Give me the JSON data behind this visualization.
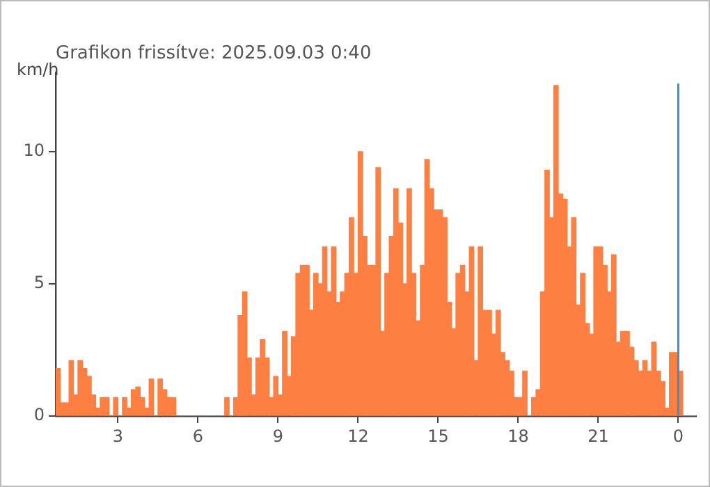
{
  "chart_data": {
    "type": "bar",
    "title": "Grafikon frissítve: 2025.09.03 0:40",
    "ylabel": "km/h",
    "x": [
      "2025-09-02T00:45",
      "2025-09-02T00:55",
      "2025-09-02T01:05",
      "2025-09-02T01:15",
      "2025-09-02T01:25",
      "2025-09-02T01:35",
      "2025-09-02T01:45",
      "2025-09-02T01:55",
      "2025-09-02T02:05",
      "2025-09-02T02:15",
      "2025-09-02T02:25",
      "2025-09-02T02:35",
      "2025-09-02T02:45",
      "2025-09-02T02:55",
      "2025-09-02T03:05",
      "2025-09-02T03:15",
      "2025-09-02T03:25",
      "2025-09-02T03:35",
      "2025-09-02T03:45",
      "2025-09-02T03:55",
      "2025-09-02T04:05",
      "2025-09-02T04:15",
      "2025-09-02T04:25",
      "2025-09-02T04:35",
      "2025-09-02T04:45",
      "2025-09-02T04:55",
      "2025-09-02T05:05",
      "2025-09-02T05:15",
      "2025-09-02T05:25",
      "2025-09-02T05:35",
      "2025-09-02T05:45",
      "2025-09-02T05:55",
      "2025-09-02T06:05",
      "2025-09-02T06:15",
      "2025-09-02T06:25",
      "2025-09-02T06:35",
      "2025-09-02T06:45",
      "2025-09-02T06:55",
      "2025-09-02T07:05",
      "2025-09-02T07:15",
      "2025-09-02T07:25",
      "2025-09-02T07:35",
      "2025-09-02T07:45",
      "2025-09-02T07:55",
      "2025-09-02T08:05",
      "2025-09-02T08:15",
      "2025-09-02T08:25",
      "2025-09-02T08:35",
      "2025-09-02T08:45",
      "2025-09-02T08:55",
      "2025-09-02T09:05",
      "2025-09-02T09:15",
      "2025-09-02T09:25",
      "2025-09-02T09:35",
      "2025-09-02T09:45",
      "2025-09-02T09:55",
      "2025-09-02T10:05",
      "2025-09-02T10:15",
      "2025-09-02T10:25",
      "2025-09-02T10:35",
      "2025-09-02T10:45",
      "2025-09-02T10:55",
      "2025-09-02T11:05",
      "2025-09-02T11:15",
      "2025-09-02T11:25",
      "2025-09-02T11:35",
      "2025-09-02T11:45",
      "2025-09-02T11:55",
      "2025-09-02T12:05",
      "2025-09-02T12:15",
      "2025-09-02T12:25",
      "2025-09-02T12:35",
      "2025-09-02T12:45",
      "2025-09-02T12:55",
      "2025-09-02T13:05",
      "2025-09-02T13:15",
      "2025-09-02T13:25",
      "2025-09-02T13:35",
      "2025-09-02T13:45",
      "2025-09-02T13:55",
      "2025-09-02T14:05",
      "2025-09-02T14:15",
      "2025-09-02T14:25",
      "2025-09-02T14:35",
      "2025-09-02T14:45",
      "2025-09-02T14:55",
      "2025-09-02T15:05",
      "2025-09-02T15:15",
      "2025-09-02T15:25",
      "2025-09-02T15:35",
      "2025-09-02T15:45",
      "2025-09-02T15:55",
      "2025-09-02T16:05",
      "2025-09-02T16:15",
      "2025-09-02T16:25",
      "2025-09-02T16:35",
      "2025-09-02T16:45",
      "2025-09-02T16:55",
      "2025-09-02T17:05",
      "2025-09-02T17:15",
      "2025-09-02T17:25",
      "2025-09-02T17:35",
      "2025-09-02T17:45",
      "2025-09-02T17:55",
      "2025-09-02T18:05",
      "2025-09-02T18:15",
      "2025-09-02T18:25",
      "2025-09-02T18:35",
      "2025-09-02T18:45",
      "2025-09-02T18:55",
      "2025-09-02T19:05",
      "2025-09-02T19:15",
      "2025-09-02T19:25",
      "2025-09-02T19:35",
      "2025-09-02T19:45",
      "2025-09-02T19:55",
      "2025-09-02T20:05",
      "2025-09-02T20:15",
      "2025-09-02T20:25",
      "2025-09-02T20:35",
      "2025-09-02T20:45",
      "2025-09-02T20:55",
      "2025-09-02T21:05",
      "2025-09-02T21:15",
      "2025-09-02T21:25",
      "2025-09-02T21:35",
      "2025-09-02T21:45",
      "2025-09-02T21:55",
      "2025-09-02T22:05",
      "2025-09-02T22:15",
      "2025-09-02T22:25",
      "2025-09-02T22:35",
      "2025-09-02T22:45",
      "2025-09-02T22:55",
      "2025-09-02T23:05",
      "2025-09-02T23:15",
      "2025-09-02T23:25",
      "2025-09-02T23:35",
      "2025-09-02T23:45",
      "2025-09-02T23:55",
      "2025-09-03T00:05",
      "2025-09-03T00:15",
      "2025-09-03T00:25",
      "2025-09-03T00:35"
    ],
    "values": [
      1.8,
      0.5,
      0.5,
      2.1,
      0.8,
      2.1,
      1.8,
      1.5,
      0.8,
      0.3,
      0.7,
      0.7,
      0,
      0.7,
      0,
      0.7,
      0.3,
      1.0,
      1.1,
      0.7,
      0.3,
      1.4,
      0,
      1.4,
      1.0,
      0.7,
      0.7,
      0,
      0,
      0,
      0,
      0,
      0,
      0,
      0,
      0,
      0,
      0,
      0.7,
      0,
      0.7,
      3.8,
      4.7,
      2.2,
      0.8,
      2.2,
      2.9,
      2.2,
      0.7,
      1.5,
      0.8,
      3.2,
      1.5,
      3.0,
      5.4,
      5.7,
      5.7,
      4.0,
      5.4,
      5.0,
      6.4,
      4.7,
      6.4,
      4.3,
      4.7,
      5.4,
      7.5,
      5.4,
      10.0,
      6.8,
      5.7,
      5.7,
      9.4,
      3.2,
      5.4,
      6.8,
      8.6,
      7.3,
      5.0,
      8.6,
      5.4,
      3.6,
      5.7,
      9.7,
      8.6,
      7.8,
      7.8,
      7.5,
      4.3,
      3.3,
      5.4,
      5.7,
      4.7,
      6.4,
      2.1,
      6.4,
      4.0,
      4.0,
      3.1,
      4.0,
      2.4,
      2.1,
      1.7,
      0.7,
      0.7,
      1.7,
      0,
      0.7,
      1.0,
      4.7,
      9.3,
      7.5,
      12.5,
      8.4,
      8.2,
      6.4,
      7.5,
      4.2,
      5.4,
      3.5,
      3.1,
      6.4,
      6.4,
      5.7,
      4.7,
      6.1,
      2.8,
      3.2,
      3.2,
      2.6,
      2.1,
      1.7,
      2.1,
      1.7,
      2.8,
      1.7,
      1.3,
      0.3,
      2.4,
      2.4,
      1.7,
      0,
      0,
      0
    ],
    "color": "#fd8042",
    "xlim": [
      "2025-09-02T00:40",
      "2025-09-03T00:40"
    ],
    "xticks": [
      {
        "value": "2025-09-02T03:00",
        "label": "3"
      },
      {
        "value": "2025-09-02T06:00",
        "label": "6"
      },
      {
        "value": "2025-09-02T09:00",
        "label": "9"
      },
      {
        "value": "2025-09-02T12:00",
        "label": "12"
      },
      {
        "value": "2025-09-02T15:00",
        "label": "15"
      },
      {
        "value": "2025-09-02T18:00",
        "label": "18"
      },
      {
        "value": "2025-09-02T21:00",
        "label": "21"
      },
      {
        "value": "2025-09-03T00:00",
        "label": "0"
      }
    ],
    "ylim": [
      0,
      13
    ],
    "yticks": [
      0,
      5,
      10
    ],
    "ref_lines": [
      {
        "axis": "x",
        "value": "2025-09-03T00:00",
        "color": "#3a8fd0"
      }
    ],
    "grid": false,
    "legend": false
  }
}
